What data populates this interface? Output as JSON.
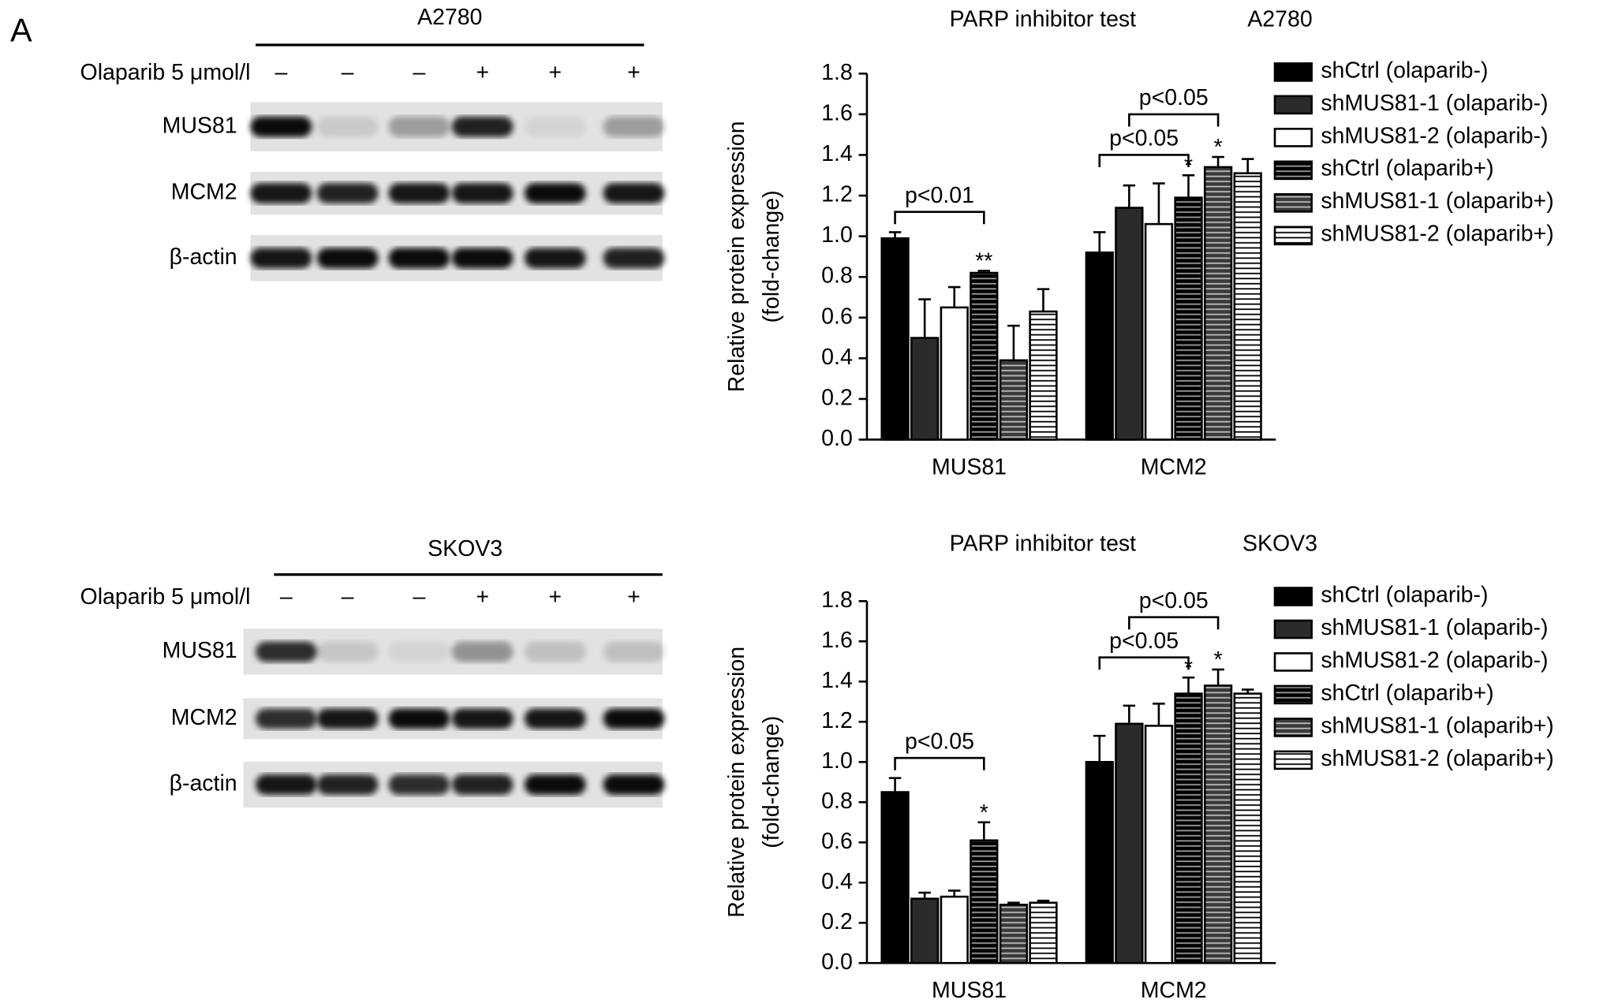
{
  "panel_label": "A",
  "blots": [
    {
      "cell_line": "A2780",
      "treatment": "Olaparib 5 μmol/l",
      "lanes": [
        "–",
        "–",
        "–",
        "+",
        "+",
        "+"
      ],
      "rows": [
        "MUS81",
        "MCM2",
        "β-actin"
      ]
    },
    {
      "cell_line": "SKOV3",
      "treatment": "Olaparib 5 μmol/l",
      "lanes": [
        "–",
        "–",
        "–",
        "+",
        "+",
        "+"
      ],
      "rows": [
        "MUS81",
        "MCM2",
        "β-actin"
      ]
    }
  ],
  "chart_data": [
    {
      "type": "bar",
      "title": "PARP inhibitor test",
      "cell_line": "A2780",
      "ylabel": [
        "Relative protein expression",
        "(fold-change)"
      ],
      "categories": [
        "MUS81",
        "MCM2"
      ],
      "ylim": [
        0,
        1.8
      ],
      "yticks": [
        {
          "value": 0,
          "label": "0.0"
        },
        0.2,
        0.4,
        0.6,
        0.8,
        {
          "value": 1,
          "label": "1.0"
        },
        1.2,
        1.4,
        1.6,
        1.8
      ],
      "series": [
        {
          "name": "shCtrl (olaparib-)",
          "color": "#000000",
          "values": [
            0.99,
            0.92
          ],
          "errors": [
            0.03,
            0.1
          ]
        },
        {
          "name": "shMUS81-1 (olaparib-)",
          "color": "#2b2b2b",
          "values": [
            0.5,
            1.14
          ],
          "errors": [
            0.19,
            0.11
          ]
        },
        {
          "name": "shMUS81-2 (olaparib-)",
          "color": "#ffffff",
          "values": [
            0.65,
            1.06
          ],
          "errors": [
            0.1,
            0.2
          ]
        },
        {
          "name": "shCtrl (olaparib+)",
          "color": "#000000",
          "hatch": "#9a9a9a",
          "values": [
            0.82,
            1.19
          ],
          "errors": [
            0.01,
            0.11
          ]
        },
        {
          "name": "shMUS81-1 (olaparib+)",
          "color": "#3a3a3a",
          "hatch": "#bbbbbb",
          "values": [
            0.39,
            1.34
          ],
          "errors": [
            0.17,
            0.05
          ]
        },
        {
          "name": "shMUS81-2 (olaparib+)",
          "color": "#ffffff",
          "hatch": "#000000",
          "values": [
            0.63,
            1.31
          ],
          "errors": [
            0.11,
            0.07
          ]
        }
      ],
      "brackets": [
        {
          "text": "p<0.01",
          "category": "MUS81",
          "between": [
            "shCtrl (olaparib-)",
            "shCtrl (olaparib+)"
          ]
        },
        {
          "text": "p<0.05",
          "category": "MCM2",
          "between": [
            "shCtrl (olaparib-)",
            "shCtrl (olaparib+)"
          ]
        },
        {
          "text": "p<0.05",
          "category": "MCM2",
          "between": [
            "shMUS81-1 (olaparib-)",
            "shMUS81-1 (olaparib+)"
          ]
        }
      ],
      "significance": [
        {
          "text": "**",
          "category": "MUS81",
          "series": "shCtrl (olaparib+)"
        },
        {
          "text": "*",
          "category": "MCM2",
          "series": "shCtrl (olaparib+)"
        },
        {
          "text": "*",
          "category": "MCM2",
          "series": "shMUS81-1 (olaparib+)"
        }
      ]
    },
    {
      "type": "bar",
      "title": "PARP inhibitor test",
      "cell_line": "SKOV3",
      "ylabel": [
        "Relative protein expression",
        "(fold-change)"
      ],
      "categories": [
        "MUS81",
        "MCM2"
      ],
      "ylim": [
        0,
        1.8
      ],
      "yticks": [
        {
          "value": 0,
          "label": "0.0"
        },
        0.2,
        0.4,
        0.6,
        0.8,
        {
          "value": 1,
          "label": "1.0"
        },
        1.2,
        1.4,
        1.6,
        1.8
      ],
      "series": [
        {
          "name": "shCtrl (olaparib-)",
          "color": "#000000",
          "values": [
            0.85,
            1.0
          ],
          "errors": [
            0.07,
            0.13
          ]
        },
        {
          "name": "shMUS81-1 (olaparib-)",
          "color": "#2b2b2b",
          "values": [
            0.32,
            1.19
          ],
          "errors": [
            0.03,
            0.09
          ]
        },
        {
          "name": "shMUS81-2 (olaparib-)",
          "color": "#ffffff",
          "values": [
            0.33,
            1.18
          ],
          "errors": [
            0.03,
            0.11
          ]
        },
        {
          "name": "shCtrl (olaparib+)",
          "color": "#000000",
          "hatch": "#9a9a9a",
          "values": [
            0.61,
            1.34
          ],
          "errors": [
            0.09,
            0.08
          ]
        },
        {
          "name": "shMUS81-1 (olaparib+)",
          "color": "#3a3a3a",
          "hatch": "#bbbbbb",
          "values": [
            0.29,
            1.38
          ],
          "errors": [
            0.01,
            0.08
          ]
        },
        {
          "name": "shMUS81-2 (olaparib+)",
          "color": "#ffffff",
          "hatch": "#000000",
          "values": [
            0.3,
            1.34
          ],
          "errors": [
            0.01,
            0.02
          ]
        }
      ],
      "brackets": [
        {
          "text": "p<0.05",
          "category": "MUS81",
          "between": [
            "shCtrl (olaparib-)",
            "shCtrl (olaparib+)"
          ]
        },
        {
          "text": "p<0.05",
          "category": "MCM2",
          "between": [
            "shCtrl (olaparib-)",
            "shCtrl (olaparib+)"
          ]
        },
        {
          "text": "p<0.05",
          "category": "MCM2",
          "between": [
            "shMUS81-1 (olaparib-)",
            "shMUS81-1 (olaparib+)"
          ]
        }
      ],
      "significance": [
        {
          "text": "*",
          "category": "MUS81",
          "series": "shCtrl (olaparib+)"
        },
        {
          "text": "*",
          "category": "MCM2",
          "series": "shCtrl (olaparib+)"
        },
        {
          "text": "*",
          "category": "MCM2",
          "series": "shMUS81-1 (olaparib+)"
        }
      ]
    }
  ]
}
